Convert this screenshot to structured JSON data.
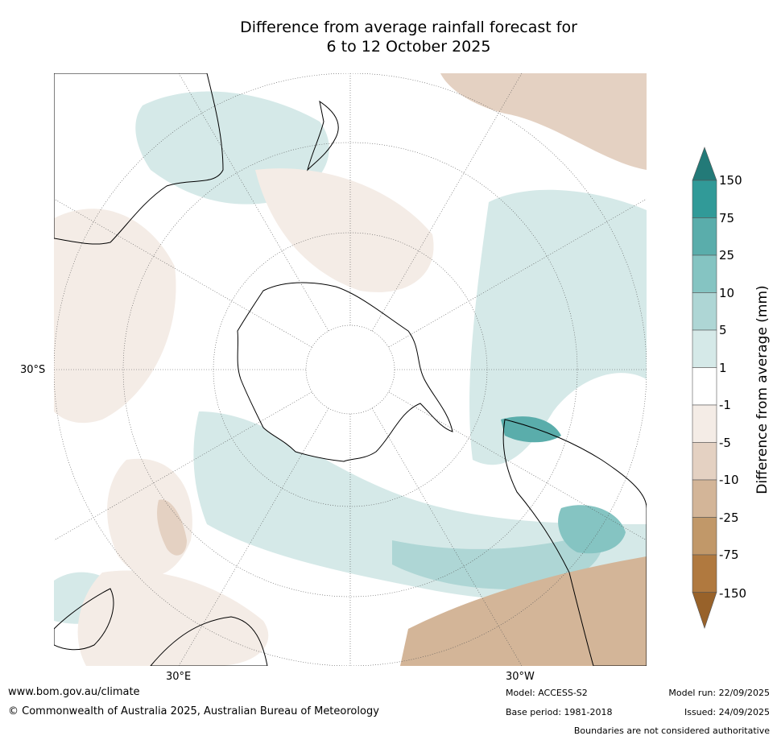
{
  "title": {
    "line1": "Difference from average rainfall forecast for",
    "line2": "6 to 12 October 2025"
  },
  "map": {
    "projection": "south-polar-stereographic",
    "labels": {
      "lat_30s": "30°S",
      "lon_30e": "30°E",
      "lon_30w": "30°W"
    }
  },
  "colorbar": {
    "label": "Difference from average (mm)",
    "ticks": [
      "150",
      "75",
      "25",
      "10",
      "5",
      "1",
      "-1",
      "-5",
      "-10",
      "-25",
      "-75",
      "-150"
    ],
    "colors": {
      "gt150": "#237a78",
      "75_150": "#319a98",
      "25_75": "#5aadab",
      "10_25": "#85c4c2",
      "5_10": "#aed6d5",
      "1_5": "#d5e9e8",
      "-1_1": "#ffffff",
      "-5_-1": "#f4ece6",
      "-10_-5": "#e4d1c2",
      "-25_-10": "#d3b598",
      "-75_-25": "#c19869",
      "-150_-75": "#b0793f",
      "lt-150": "#98622a"
    }
  },
  "footer": {
    "url": "www.bom.gov.au/climate",
    "copyright": "© Commonwealth of Australia 2025, Australian Bureau of Meteorology",
    "model": "Model: ACCESS-S2",
    "base_period": "Base period: 1981-2018",
    "model_run": "Model run: 22/09/2025",
    "issued": "Issued: 24/09/2025",
    "disclaimer": "Boundaries are not considered authoritative"
  }
}
